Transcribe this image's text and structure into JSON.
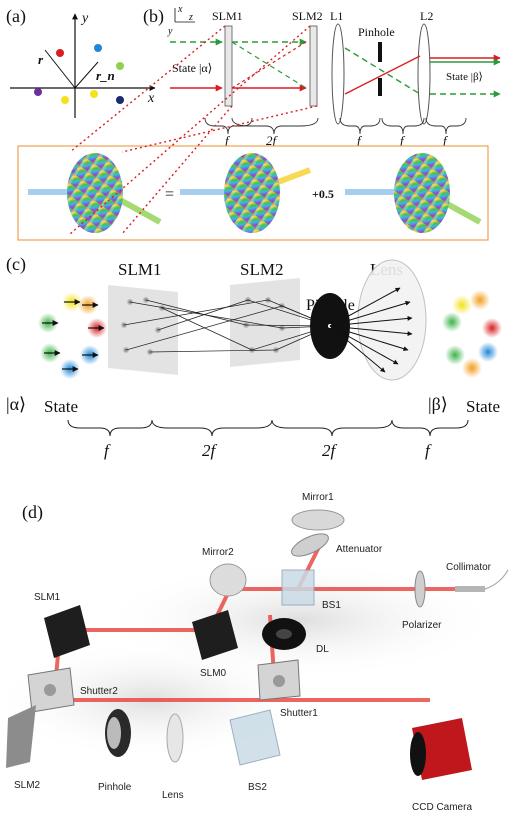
{
  "panel_a": {
    "tag": "(a)",
    "x_axis": "x",
    "y_axis": "y",
    "r": "r",
    "rn": "r_n"
  },
  "panel_b": {
    "tag": "(b)",
    "axis_x": "x",
    "axis_y": "y",
    "axis_z": "z",
    "labels": [
      "SLM1",
      "SLM2",
      "L1",
      "Pinhole",
      "L2"
    ],
    "state_in": "State |α⟩",
    "state_out": "State |β⟩",
    "focal": [
      "f",
      "2f",
      "f",
      "f",
      "f"
    ],
    "equals": "=",
    "plus": "+0.5"
  },
  "panel_c": {
    "tag": "(c)",
    "labels": [
      "SLM1",
      "SLM2",
      "Pinhole",
      "Lens"
    ],
    "state_in_ket": "|α⟩",
    "state_in_word": "State",
    "state_out_ket": "|β⟩",
    "state_out_word": "State",
    "focal": [
      "f",
      "2f",
      "2f",
      "f"
    ],
    "colors": {
      "yellow": "#f4e21a",
      "orange": "#f39c1c",
      "red": "#d81e22",
      "green": "#3bb34a",
      "blue": "#1e88d8"
    }
  },
  "panel_d": {
    "tag": "(d)",
    "components": [
      "Mirror1",
      "Attenuator",
      "Mirror2",
      "Collimator",
      "SLM1",
      "BS1",
      "Polarizer",
      "SLM0",
      "DL",
      "Shutter2",
      "Shutter1",
      "SLM2",
      "Pinhole",
      "Lens",
      "BS2",
      "CCD Camera"
    ],
    "beam_color": "#e8403a"
  }
}
